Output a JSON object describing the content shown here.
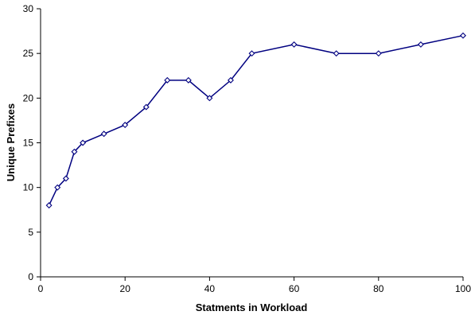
{
  "chart_data": {
    "type": "line",
    "title": "",
    "xlabel": "Statments in Workload",
    "ylabel": "Unique Prefixes",
    "xlim": [
      0,
      100
    ],
    "ylim": [
      0,
      30
    ],
    "x_ticks": [
      "0",
      "20",
      "40",
      "60",
      "80",
      "100"
    ],
    "y_ticks": [
      "0",
      "5",
      "10",
      "15",
      "20",
      "25",
      "30"
    ],
    "grid": false,
    "legend": "none",
    "marker": "diamond",
    "line_color": "#000080",
    "series": [
      {
        "x": [
          2,
          4,
          6,
          8,
          10,
          15,
          20,
          25,
          30,
          35,
          40,
          45,
          50,
          60,
          70,
          80,
          90,
          100
        ],
        "values": [
          8,
          10,
          11,
          14,
          15,
          16,
          17,
          19,
          22,
          22,
          20,
          22,
          25,
          26,
          25,
          25,
          26,
          27
        ]
      }
    ]
  }
}
